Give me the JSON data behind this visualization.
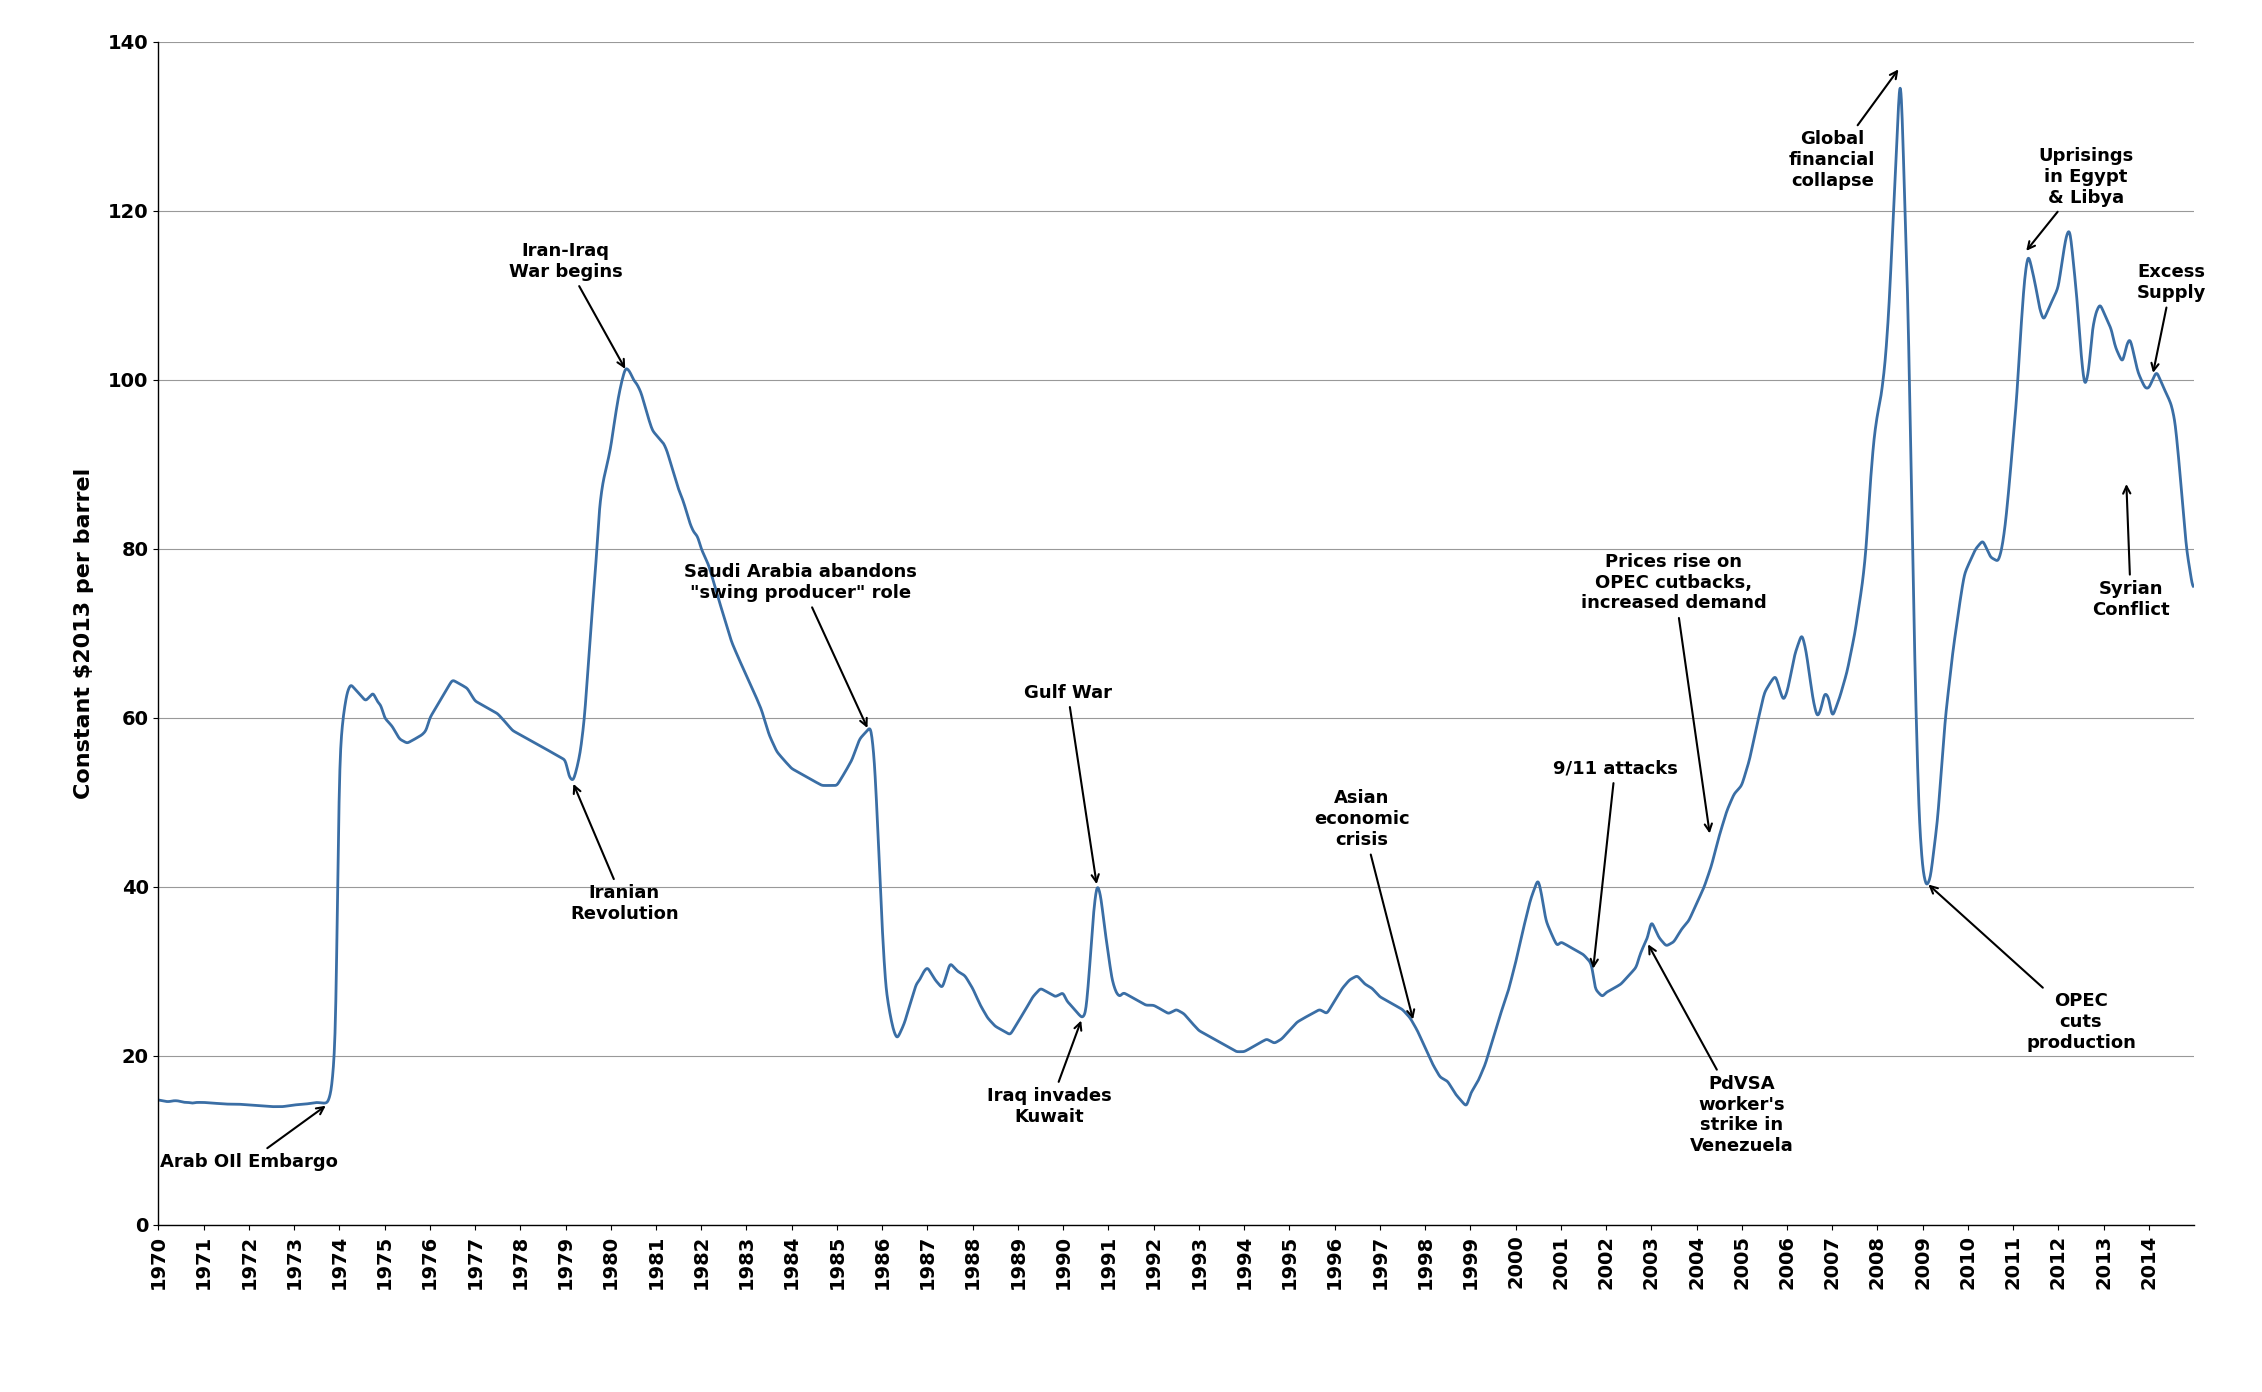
{
  "ylabel": "Constant $2013 per barrel",
  "line_color": "#3a6ea5",
  "line_width": 2.0,
  "background_color": "#ffffff",
  "ylim": [
    0,
    140
  ],
  "yticks": [
    0,
    20,
    40,
    60,
    80,
    100,
    120,
    140
  ],
  "xlim": [
    1970,
    2015
  ],
  "grid_color": "#999999",
  "tick_fontsize": 14,
  "ylabel_fontsize": 16,
  "annot_fontsize": 13
}
